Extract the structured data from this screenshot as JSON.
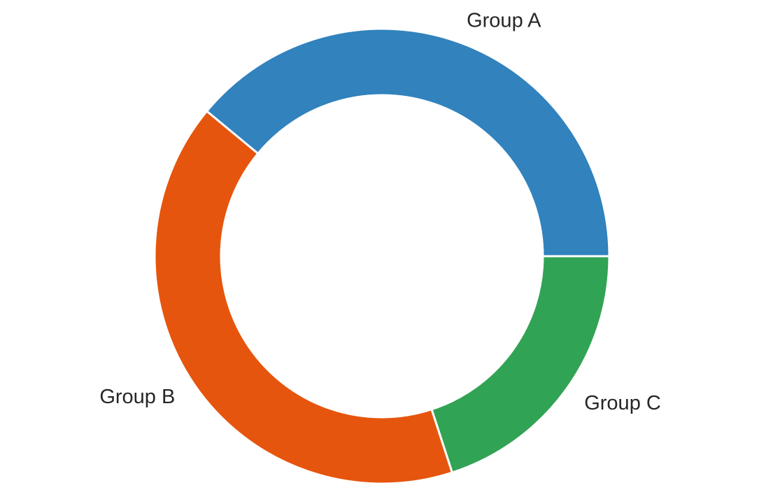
{
  "chart_data": {
    "type": "pie",
    "style": "donut",
    "title": "",
    "labels": [
      "Group A",
      "Group B",
      "Group C"
    ],
    "values": [
      39,
      41,
      20
    ],
    "colors": [
      "#3182bd",
      "#e6550d",
      "#31a354"
    ],
    "start_angle_deg": 0,
    "direction": "counterclockwise",
    "legend": "none"
  }
}
